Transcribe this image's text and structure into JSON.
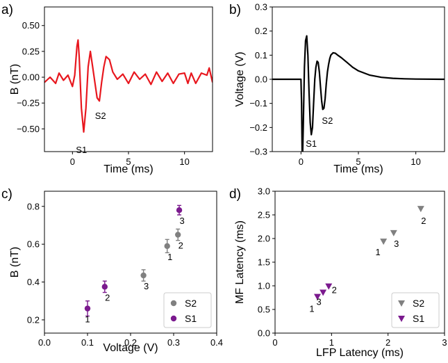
{
  "chart_data": [
    {
      "panel_label": "a)",
      "type": "line",
      "xlabel": "Time (ms)",
      "ylabel": "B (nT)",
      "xlim": [
        -2.5,
        12.5
      ],
      "ylim": [
        -0.72,
        0.68
      ],
      "xticks": [
        0,
        5,
        10
      ],
      "yticks": [
        -0.5,
        -0.25,
        0.0,
        0.25,
        0.5
      ],
      "ytick_labels": [
        "−0.50",
        "−0.25",
        "0.00",
        "0.25",
        "0.50"
      ],
      "color": "#e8171e",
      "x": [
        -2.5,
        -2.0,
        -1.5,
        -1.2,
        -0.8,
        -0.4,
        0.0,
        0.2,
        0.4,
        0.5,
        0.6,
        0.8,
        1.0,
        1.2,
        1.4,
        1.6,
        1.8,
        2.0,
        2.2,
        2.4,
        2.6,
        2.8,
        3.0,
        3.3,
        3.6,
        4.0,
        4.5,
        5.0,
        5.5,
        6.0,
        6.5,
        7.0,
        7.5,
        8.0,
        8.5,
        9.0,
        9.5,
        10.0,
        10.3,
        10.6,
        11.0,
        11.5,
        12.0,
        12.2,
        12.5
      ],
      "y": [
        -0.05,
        0.0,
        -0.06,
        0.04,
        -0.03,
        0.02,
        -0.09,
        0.02,
        0.3,
        0.36,
        0.2,
        -0.3,
        -0.53,
        -0.3,
        0.1,
        0.25,
        0.1,
        -0.05,
        -0.2,
        -0.23,
        -0.05,
        0.1,
        0.2,
        0.17,
        0.05,
        -0.02,
        0.03,
        -0.06,
        0.05,
        -0.02,
        0.03,
        -0.07,
        0.05,
        -0.04,
        0.04,
        -0.06,
        0.03,
        0.04,
        -0.06,
        0.04,
        -0.06,
        0.04,
        0.02,
        0.09,
        -0.05
      ],
      "annotations": [
        {
          "text": "S1",
          "x": 0.8,
          "y": -0.7
        },
        {
          "text": "S2",
          "x": 2.5,
          "y": -0.37
        }
      ]
    },
    {
      "panel_label": "b)",
      "type": "line",
      "xlabel": "Time (ms)",
      "ylabel": "Voltage (V)",
      "xlim": [
        -2.5,
        12.5
      ],
      "ylim": [
        -0.3,
        0.3
      ],
      "xticks": [
        0,
        5,
        10
      ],
      "yticks": [
        -0.3,
        -0.2,
        -0.1,
        0.0,
        0.1,
        0.2,
        0.3
      ],
      "ytick_labels": [
        "−0.3",
        "−0.2",
        "−0.1",
        "0.0",
        "0.1",
        "0.2",
        "0.3"
      ],
      "color": "#000000",
      "x": [
        -2.5,
        0.0,
        0.05,
        0.1,
        0.12,
        0.15,
        0.2,
        0.3,
        0.4,
        0.5,
        0.6,
        0.7,
        0.8,
        0.9,
        1.0,
        1.1,
        1.2,
        1.3,
        1.4,
        1.5,
        1.6,
        1.7,
        1.8,
        1.9,
        2.0,
        2.1,
        2.2,
        2.3,
        2.4,
        2.5,
        2.6,
        2.8,
        3.0,
        3.2,
        3.5,
        4.0,
        4.5,
        5.0,
        6.0,
        7.0,
        8.0,
        9.0,
        10.0,
        12.5
      ],
      "y": [
        0.0,
        0.0,
        -0.1,
        -0.3,
        -0.3,
        -0.3,
        -0.2,
        0.05,
        0.16,
        0.18,
        0.1,
        -0.05,
        -0.18,
        -0.23,
        -0.2,
        -0.1,
        0.0,
        0.05,
        0.075,
        0.07,
        0.03,
        -0.03,
        -0.09,
        -0.125,
        -0.12,
        -0.08,
        -0.02,
        0.03,
        0.06,
        0.085,
        0.1,
        0.11,
        0.108,
        0.1,
        0.09,
        0.07,
        0.05,
        0.035,
        0.017,
        0.008,
        0.004,
        0.002,
        0.001,
        0.0
      ],
      "annotations": [
        {
          "text": "S1",
          "x": 0.9,
          "y": -0.265
        },
        {
          "text": "S2",
          "x": 2.3,
          "y": -0.17
        }
      ]
    },
    {
      "panel_label": "c)",
      "type": "scatter",
      "xlabel": "Voltage (V)",
      "ylabel": "B (nT)",
      "xlim": [
        0.0,
        0.4
      ],
      "ylim": [
        0.13,
        0.88
      ],
      "xticks": [
        0.0,
        0.1,
        0.2,
        0.3,
        0.4
      ],
      "xtick_labels": [
        "0.0",
        "0.1",
        "0.2",
        "0.3",
        "0.4"
      ],
      "yticks": [
        0.2,
        0.4,
        0.6,
        0.8
      ],
      "ytick_labels": [
        "0.2",
        "0.4",
        "0.6",
        "0.8"
      ],
      "series": [
        {
          "name": "S2",
          "color": "#808080",
          "points": [
            {
              "x": 0.285,
              "y": 0.59,
              "err": 0.035,
              "label": "1"
            },
            {
              "x": 0.31,
              "y": 0.65,
              "err": 0.03,
              "label": "2"
            },
            {
              "x": 0.23,
              "y": 0.435,
              "err": 0.03,
              "label": "3"
            }
          ]
        },
        {
          "name": "S1",
          "color": "#7b1a8e",
          "points": [
            {
              "x": 0.1,
              "y": 0.26,
              "err": 0.04,
              "label": "1"
            },
            {
              "x": 0.14,
              "y": 0.375,
              "err": 0.03,
              "label": "2"
            },
            {
              "x": 0.313,
              "y": 0.78,
              "err": 0.025,
              "label": "3"
            }
          ]
        }
      ],
      "legend": "lower-right"
    },
    {
      "panel_label": "d)",
      "type": "scatter",
      "xlabel": "LFP Latency (ms)",
      "ylabel": "MF Latency (ms)",
      "xlim": [
        0,
        3
      ],
      "ylim": [
        0.0,
        3.0
      ],
      "xticks": [
        0,
        1,
        2,
        3
      ],
      "xtick_labels": [
        "0",
        "1",
        "2",
        "3"
      ],
      "yticks": [
        0.0,
        0.5,
        1.0,
        1.5,
        2.0,
        2.5,
        3.0
      ],
      "ytick_labels": [
        "0.0",
        "0.5",
        "1.0",
        "1.5",
        "2.0",
        "2.5",
        "3.0"
      ],
      "series": [
        {
          "name": "S2",
          "color": "#808080",
          "points": [
            {
              "x": 1.92,
              "y": 1.94,
              "label": "1"
            },
            {
              "x": 2.58,
              "y": 2.63,
              "label": "2"
            },
            {
              "x": 2.1,
              "y": 2.12,
              "label": "3"
            }
          ]
        },
        {
          "name": "S1",
          "color": "#7b1a8e",
          "points": [
            {
              "x": 0.75,
              "y": 0.77,
              "label": "1"
            },
            {
              "x": 0.95,
              "y": 0.99,
              "label": "2"
            },
            {
              "x": 0.85,
              "y": 0.86,
              "label": "3"
            }
          ]
        }
      ],
      "legend": "lower-right"
    }
  ]
}
